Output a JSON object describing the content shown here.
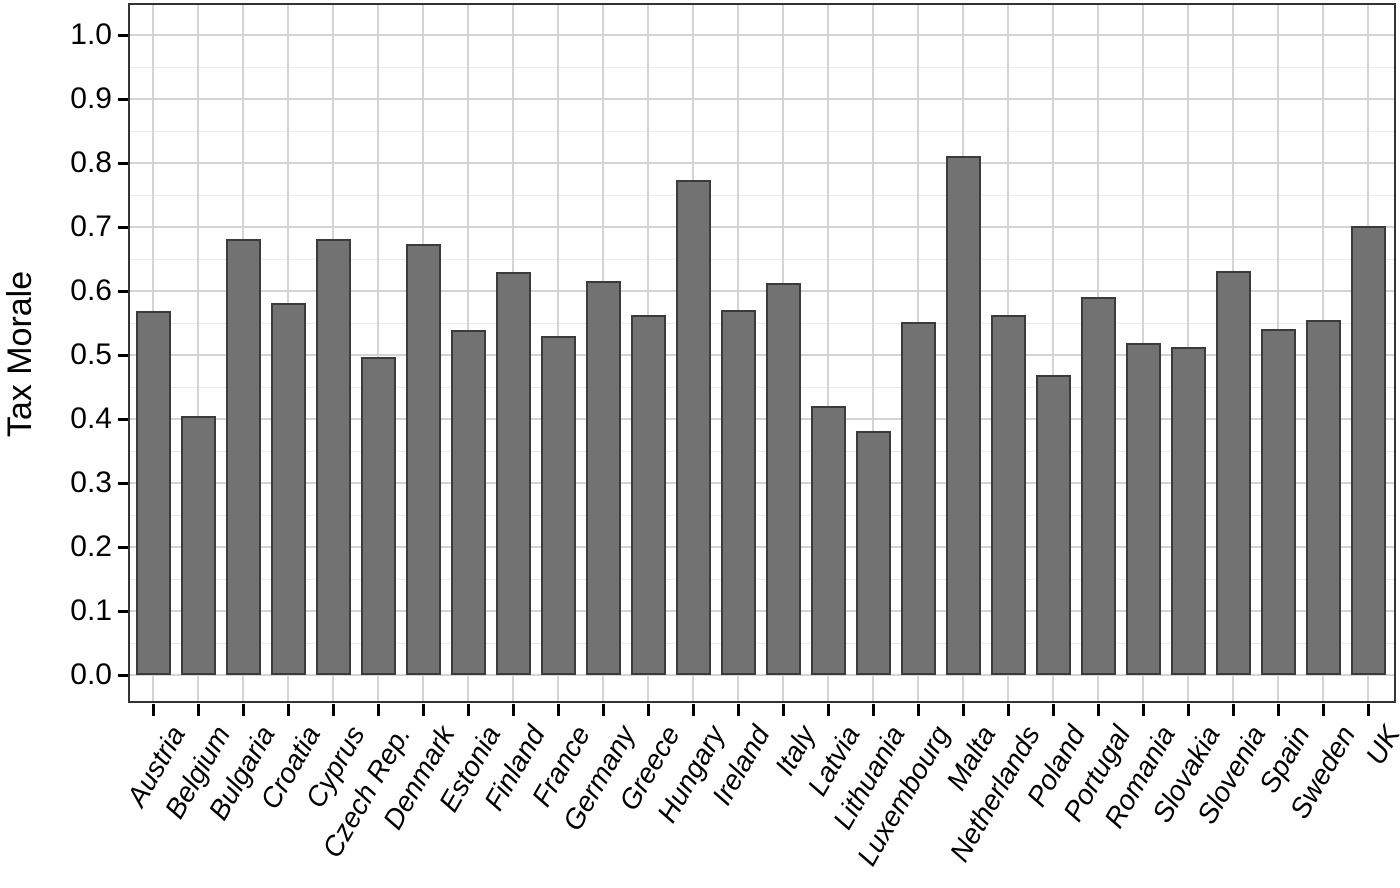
{
  "chart_data": {
    "type": "bar",
    "title": "",
    "xlabel": "",
    "ylabel": "Tax Morale",
    "categories": [
      "Austria",
      "Belgium",
      "Bulgaria",
      "Croatia",
      "Cyprus",
      "Czech Rep.",
      "Denmark",
      "Estonia",
      "Finland",
      "France",
      "Germany",
      "Greece",
      "Hungary",
      "Ireland",
      "Italy",
      "Latvia",
      "Lithuania",
      "Luxembourg",
      "Malta",
      "Netherlands",
      "Poland",
      "Portugal",
      "Romania",
      "Slovakia",
      "Slovenia",
      "Spain",
      "Sweden",
      "UK"
    ],
    "values": [
      0.569,
      0.405,
      0.682,
      0.582,
      0.682,
      0.497,
      0.674,
      0.539,
      0.63,
      0.529,
      0.616,
      0.563,
      0.774,
      0.57,
      0.613,
      0.42,
      0.381,
      0.551,
      0.811,
      0.563,
      0.468,
      0.59,
      0.518,
      0.512,
      0.632,
      0.54,
      0.555,
      0.701
    ],
    "ylim": [
      0.0,
      1.0
    ],
    "ytick_labels": [
      "0.0",
      "0.1",
      "0.2",
      "0.3",
      "0.4",
      "0.5",
      "0.6",
      "0.7",
      "0.8",
      "0.9",
      "1.0"
    ],
    "grid": {
      "horizontal_major_step": 0.1,
      "horizontal_minor_step": 0.05,
      "vertical_major": "at category centers"
    },
    "legend_position": "none",
    "x_tick_label_rotation_deg": 60,
    "x_tick_label_style": "italic"
  },
  "styles": {
    "bar_fill": "#727272",
    "bar_stroke": "#3b3b3b",
    "grid_major": "#d4d4d4",
    "grid_minor": "#eaeaea",
    "panel_border": "#333333",
    "axis_text": "#000000",
    "background": "#ffffff"
  }
}
